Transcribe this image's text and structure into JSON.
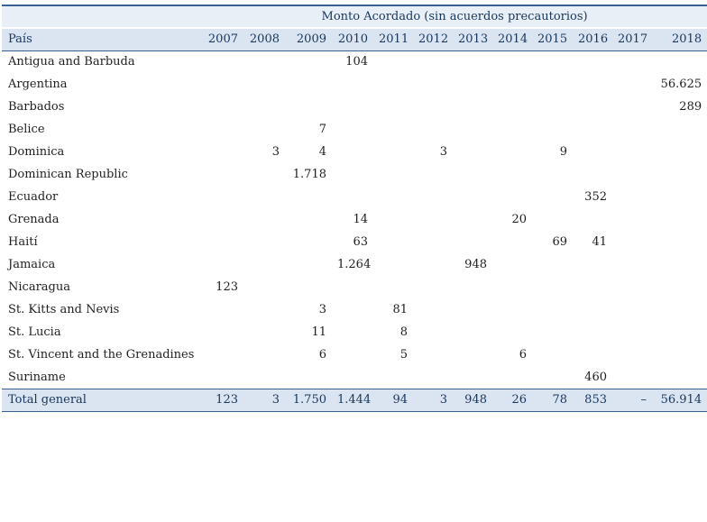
{
  "chart_data": {
    "type": "table",
    "title": "Monto Acordado (sin acuerdos precautorios)",
    "columns": [
      "País",
      "2007",
      "2008",
      "2009",
      "2010",
      "2011",
      "2012",
      "2013",
      "2014",
      "2015",
      "2016",
      "2017",
      "2018"
    ],
    "rows": [
      [
        "Antigua and Barbuda",
        "",
        "",
        "",
        "104",
        "",
        "",
        "",
        "",
        "",
        "",
        "",
        ""
      ],
      [
        "Argentina",
        "",
        "",
        "",
        "",
        "",
        "",
        "",
        "",
        "",
        "",
        "",
        "56.625"
      ],
      [
        "Barbados",
        "",
        "",
        "",
        "",
        "",
        "",
        "",
        "",
        "",
        "",
        "",
        "289"
      ],
      [
        "Belice",
        "",
        "",
        "7",
        "",
        "",
        "",
        "",
        "",
        "",
        "",
        "",
        ""
      ],
      [
        "Dominica",
        "",
        "3",
        "4",
        "",
        "",
        "3",
        "",
        "",
        "9",
        "",
        "",
        ""
      ],
      [
        "Dominican Republic",
        "",
        "",
        "1.718",
        "",
        "",
        "",
        "",
        "",
        "",
        "",
        "",
        ""
      ],
      [
        "Ecuador",
        "",
        "",
        "",
        "",
        "",
        "",
        "",
        "",
        "",
        "352",
        "",
        ""
      ],
      [
        "Grenada",
        "",
        "",
        "",
        "14",
        "",
        "",
        "",
        "20",
        "",
        "",
        "",
        ""
      ],
      [
        "Haití",
        "",
        "",
        "",
        "63",
        "",
        "",
        "",
        "",
        "69",
        "41",
        "",
        ""
      ],
      [
        "Jamaica",
        "",
        "",
        "",
        "1.264",
        "",
        "",
        "948",
        "",
        "",
        "",
        "",
        ""
      ],
      [
        "Nicaragua",
        "123",
        "",
        "",
        "",
        "",
        "",
        "",
        "",
        "",
        "",
        "",
        ""
      ],
      [
        "St. Kitts and Nevis",
        "",
        "",
        "3",
        "",
        "81",
        "",
        "",
        "",
        "",
        "",
        "",
        ""
      ],
      [
        "St. Lucia",
        "",
        "",
        "11",
        "",
        "8",
        "",
        "",
        "",
        "",
        "",
        "",
        ""
      ],
      [
        "St. Vincent and the Grenadines",
        "",
        "",
        "6",
        "",
        "5",
        "",
        "",
        "6",
        "",
        "",
        "",
        ""
      ],
      [
        "Suriname",
        "",
        "",
        "",
        "",
        "",
        "",
        "",
        "",
        "",
        "460",
        "",
        ""
      ]
    ],
    "total_row": [
      "Total general",
      "123",
      "3",
      "1.750",
      "1.444",
      "94",
      "3",
      "948",
      "26",
      "78",
      "853",
      "–",
      "56.914"
    ]
  }
}
